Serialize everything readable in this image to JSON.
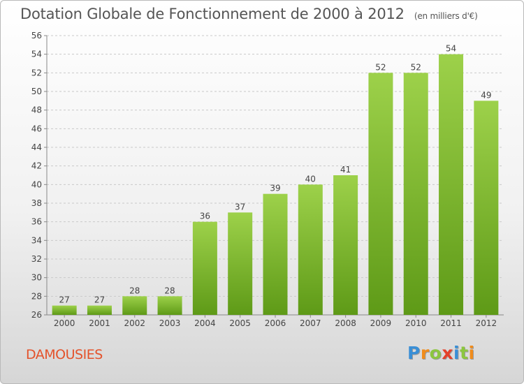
{
  "title": "Dotation Globale de Fonctionnement de 2000 à 2012",
  "unit_note": "(en milliers d'€)",
  "commune": "DAMOUSIES",
  "logo": {
    "letters": [
      "P",
      "r",
      "o",
      "x",
      "i",
      "t",
      "i"
    ],
    "colors": [
      "#3a8fd6",
      "#f08c1c",
      "#8cc63f",
      "#e4412b",
      "#3a8fd6",
      "#8cc63f",
      "#f08c1c"
    ]
  },
  "colors": {
    "bar_light": "#9dd14a",
    "bar_dark": "#5e9a17",
    "commune": "#e4522b"
  },
  "chart_data": {
    "type": "bar",
    "title": "Dotation Globale de Fonctionnement de 2000 à 2012",
    "subtitle": "(en milliers d'€)",
    "categories": [
      "2000",
      "2001",
      "2002",
      "2003",
      "2004",
      "2005",
      "2006",
      "2007",
      "2008",
      "2009",
      "2010",
      "2011",
      "2012"
    ],
    "values": [
      27,
      27,
      28,
      28,
      36,
      37,
      39,
      40,
      41,
      52,
      52,
      54,
      49
    ],
    "ylim": [
      26,
      56
    ],
    "yticks": [
      26,
      28,
      30,
      32,
      34,
      36,
      38,
      40,
      42,
      44,
      46,
      48,
      50,
      52,
      54,
      56
    ],
    "grid": "horizontal dashed",
    "data_labels": true
  }
}
